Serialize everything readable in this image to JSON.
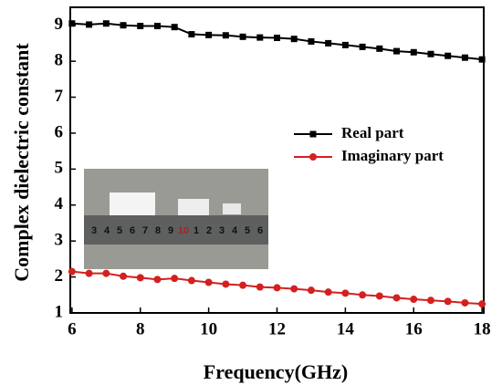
{
  "chart_data": {
    "type": "line",
    "x_label": "Frequency(GHz)",
    "y_label": "Complex dielectric constant",
    "x": [
      6,
      6.5,
      7,
      7.5,
      8,
      8.5,
      9,
      9.5,
      10,
      10.5,
      11,
      11.5,
      12,
      12.5,
      13,
      13.5,
      14,
      14.5,
      15,
      15.5,
      16,
      16.5,
      17,
      17.5,
      18
    ],
    "series": [
      {
        "name": "Real part",
        "color": "#000000",
        "marker": "square",
        "values": [
          9.05,
          9.02,
          9.05,
          9.0,
          8.98,
          8.98,
          8.95,
          8.75,
          8.73,
          8.72,
          8.68,
          8.66,
          8.65,
          8.62,
          8.55,
          8.5,
          8.45,
          8.4,
          8.35,
          8.28,
          8.25,
          8.2,
          8.15,
          8.1,
          8.05
        ]
      },
      {
        "name": "Imaginary part",
        "color": "#d42020",
        "marker": "circle",
        "values": [
          2.15,
          2.1,
          2.1,
          2.02,
          1.98,
          1.93,
          1.96,
          1.9,
          1.85,
          1.8,
          1.77,
          1.72,
          1.7,
          1.67,
          1.63,
          1.58,
          1.55,
          1.5,
          1.47,
          1.42,
          1.38,
          1.35,
          1.32,
          1.28,
          1.25
        ]
      }
    ],
    "xlim": [
      5.95,
      18.05
    ],
    "xticks": [
      6,
      8,
      10,
      12,
      14,
      16,
      18
    ],
    "ylim": [
      1,
      9.5
    ],
    "yticks": [
      1,
      2,
      3,
      4,
      5,
      6,
      7,
      8,
      9
    ],
    "legend": "center right",
    "grid": false
  },
  "inset_photo": {
    "ruler_labels": [
      "3",
      "4",
      "5",
      "6",
      "7",
      "8",
      "9",
      "10",
      "1",
      "2",
      "3",
      "4",
      "5",
      "6"
    ]
  }
}
